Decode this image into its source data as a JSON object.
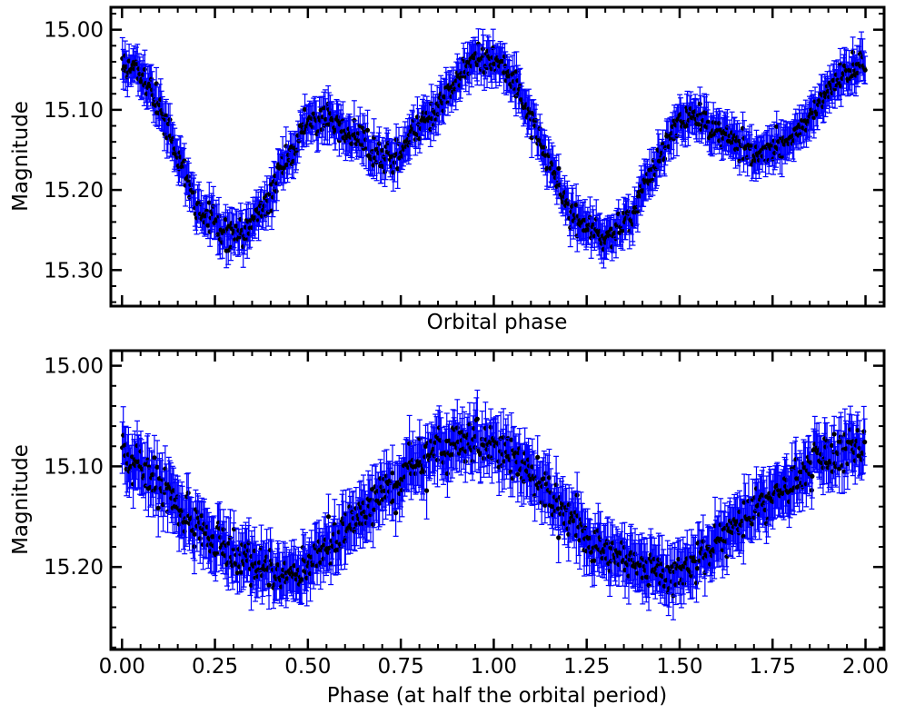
{
  "colors": {
    "errorbar": "#0000ff",
    "marker": "#000000",
    "frame": "#000000",
    "background": "#ffffff"
  },
  "chart_data": [
    {
      "type": "scatter",
      "title": "",
      "xlabel": "Orbital phase",
      "ylabel": "Magnitude",
      "xlim": [
        -0.03,
        2.05
      ],
      "ylim": [
        15.345,
        14.972
      ],
      "y_inverted": true,
      "show_x_tick_labels": false,
      "xticks": [
        0.0,
        0.25,
        0.5,
        0.75,
        1.0,
        1.25,
        1.5,
        1.75,
        2.0
      ],
      "x_tick_labels": [],
      "yticks": [
        15.0,
        15.1,
        15.2,
        15.3
      ],
      "y_tick_labels": [
        "15.00",
        "15.10",
        "15.20",
        "15.30"
      ],
      "grid": false,
      "legend": "none",
      "error_bars": true,
      "typical_error": 0.02,
      "series": [
        {
          "x": [
            0.0,
            0.05,
            0.1,
            0.15,
            0.2,
            0.25,
            0.3,
            0.35,
            0.4,
            0.45,
            0.5,
            0.55,
            0.6,
            0.65,
            0.7,
            0.75,
            0.8,
            0.85,
            0.9,
            0.95,
            1.0,
            1.05,
            1.1,
            1.15,
            1.2,
            1.25,
            1.3,
            1.35,
            1.4,
            1.45,
            1.5,
            1.55,
            1.6,
            1.65,
            1.7,
            1.75,
            1.8,
            1.85,
            1.9,
            1.95,
            2.0
          ],
          "y": [
            15.045,
            15.055,
            15.095,
            15.16,
            15.215,
            15.245,
            15.258,
            15.245,
            15.205,
            15.155,
            15.115,
            15.11,
            15.125,
            15.14,
            15.16,
            15.15,
            15.12,
            15.1,
            15.06,
            15.035,
            15.035,
            15.06,
            15.11,
            15.165,
            15.22,
            15.245,
            15.258,
            15.245,
            15.205,
            15.155,
            15.115,
            15.11,
            15.125,
            15.14,
            15.16,
            15.15,
            15.13,
            15.11,
            15.08,
            15.055,
            15.04
          ]
        }
      ]
    },
    {
      "type": "scatter",
      "title": "",
      "xlabel": "Phase (at half the orbital period)",
      "ylabel": "Magnitude",
      "xlim": [
        -0.03,
        2.05
      ],
      "ylim": [
        15.282,
        14.985
      ],
      "y_inverted": true,
      "show_x_tick_labels": true,
      "xticks": [
        0.0,
        0.25,
        0.5,
        0.75,
        1.0,
        1.25,
        1.5,
        1.75,
        2.0
      ],
      "x_tick_labels": [
        "0.00",
        "0.25",
        "0.50",
        "0.75",
        "1.00",
        "1.25",
        "1.50",
        "1.75",
        "2.00"
      ],
      "yticks": [
        15.0,
        15.1,
        15.2
      ],
      "y_tick_labels": [
        "15.00",
        "15.10",
        "15.20"
      ],
      "grid": false,
      "legend": "none",
      "error_bars": true,
      "typical_error": 0.022,
      "series": [
        {
          "x": [
            0.0,
            0.05,
            0.1,
            0.15,
            0.2,
            0.25,
            0.3,
            0.35,
            0.4,
            0.45,
            0.5,
            0.55,
            0.6,
            0.65,
            0.7,
            0.75,
            0.8,
            0.85,
            0.9,
            0.95,
            1.0,
            1.05,
            1.1,
            1.15,
            1.2,
            1.25,
            1.3,
            1.35,
            1.4,
            1.45,
            1.5,
            1.55,
            1.6,
            1.65,
            1.7,
            1.75,
            1.8,
            1.85,
            1.9,
            1.95,
            2.0
          ],
          "y": [
            15.085,
            15.1,
            15.12,
            15.14,
            15.16,
            15.175,
            15.185,
            15.195,
            15.2,
            15.205,
            15.2,
            15.185,
            15.165,
            15.145,
            15.125,
            15.11,
            15.095,
            15.085,
            15.08,
            15.078,
            15.08,
            15.09,
            15.105,
            15.125,
            15.15,
            15.17,
            15.185,
            15.195,
            15.2,
            15.205,
            15.2,
            15.19,
            15.175,
            15.16,
            15.145,
            15.13,
            15.115,
            15.1,
            15.09,
            15.08,
            15.08
          ]
        }
      ]
    }
  ]
}
